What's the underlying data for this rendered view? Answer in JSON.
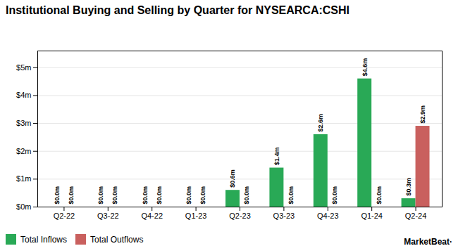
{
  "chart_data": {
    "type": "bar",
    "title": "Institutional Buying and Selling by Quarter for NYSEARCA:CSHI",
    "categories": [
      "Q2-22",
      "Q3-22",
      "Q4-22",
      "Q1-23",
      "Q2-23",
      "Q3-23",
      "Q4-23",
      "Q1-24",
      "Q2-24"
    ],
    "series": [
      {
        "name": "Total Inflows",
        "color": "#29a956",
        "values": [
          0.0,
          0.0,
          0.0,
          0.0,
          0.6,
          1.4,
          2.6,
          4.6,
          0.3
        ],
        "value_labels": [
          "$0.0m",
          "$0.0m",
          "$0.0m",
          "$0.0m",
          "$0.6m",
          "$1.4m",
          "$2.6m",
          "$4.6m",
          "$0.3m"
        ]
      },
      {
        "name": "Total Outflows",
        "color": "#c9605e",
        "values": [
          0.0,
          0.0,
          0.0,
          0.0,
          0.0,
          0.0,
          0.0,
          0.0,
          2.9
        ],
        "value_labels": [
          "$0.0m",
          "$0.0m",
          "$0.0m",
          "$0.0m",
          "$0.0m",
          "$0.0m",
          "$0.0m",
          "$0.0m",
          "$2.9m"
        ]
      }
    ],
    "ylim": [
      0,
      5.6
    ],
    "yticks": [
      {
        "value": 0,
        "label": "$0m"
      },
      {
        "value": 1,
        "label": "$1m"
      },
      {
        "value": 2,
        "label": "$2m"
      },
      {
        "value": 3,
        "label": "$3m"
      },
      {
        "value": 4,
        "label": "$4m"
      },
      {
        "value": 5,
        "label": "$5m"
      }
    ],
    "grid": true,
    "legend": "lower left",
    "data_labels": true,
    "annotations": [
      "MarketBeat·"
    ]
  }
}
